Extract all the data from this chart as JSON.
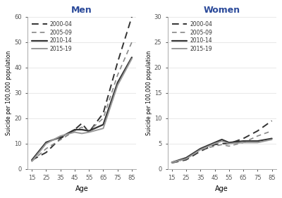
{
  "age": [
    15,
    25,
    35,
    45,
    50,
    55,
    65,
    75,
    85
  ],
  "men": {
    "2000-04": [
      3.5,
      6.5,
      12.0,
      15.5,
      18.0,
      14.5,
      22.0,
      42.0,
      60.0
    ],
    "2005-09": [
      3.0,
      8.0,
      11.5,
      15.0,
      16.5,
      15.0,
      20.0,
      37.0,
      50.0
    ],
    "2010-14": [
      3.5,
      10.5,
      12.5,
      15.5,
      15.5,
      15.0,
      17.5,
      34.0,
      44.0
    ],
    "2015-19": [
      3.0,
      10.0,
      13.0,
      14.5,
      14.0,
      14.5,
      16.0,
      33.0,
      43.5
    ]
  },
  "women": {
    "2000-04": [
      1.2,
      1.8,
      3.5,
      4.8,
      5.0,
      5.0,
      6.0,
      7.5,
      9.5
    ],
    "2005-09": [
      1.2,
      2.0,
      3.8,
      4.5,
      4.8,
      4.5,
      5.2,
      6.5,
      7.5
    ],
    "2010-14": [
      1.3,
      2.2,
      4.0,
      5.2,
      5.8,
      5.2,
      5.5,
      5.5,
      6.0
    ],
    "2015-19": [
      1.3,
      2.0,
      3.8,
      5.0,
      5.5,
      5.0,
      5.2,
      5.2,
      5.8
    ]
  },
  "periods": [
    "2000-04",
    "2005-09",
    "2010-14",
    "2015-19"
  ],
  "linestyles": [
    "--",
    "--",
    "-",
    "-"
  ],
  "colors": [
    "#333333",
    "#888888",
    "#333333",
    "#999999"
  ],
  "linewidths": [
    1.4,
    1.2,
    1.6,
    1.4
  ],
  "dash_patterns": [
    [
      5,
      3
    ],
    [
      4,
      3
    ],
    null,
    null
  ],
  "men_ylim": [
    0,
    60
  ],
  "women_ylim": [
    0,
    30
  ],
  "men_yticks": [
    0,
    10,
    20,
    30,
    40,
    50,
    60
  ],
  "women_yticks": [
    0,
    5,
    10,
    15,
    20,
    25,
    30
  ],
  "xticks": [
    15,
    25,
    35,
    45,
    55,
    65,
    75,
    85
  ],
  "xlabel": "Age",
  "ylabel": "Suicide per 100,000 population",
  "men_title": "Men",
  "women_title": "Women",
  "background_color": "#ffffff",
  "grid_color": "#e8e8e8",
  "title_color": "#2b4a9a",
  "spine_color": "#aaaaaa",
  "tick_color": "#555555"
}
